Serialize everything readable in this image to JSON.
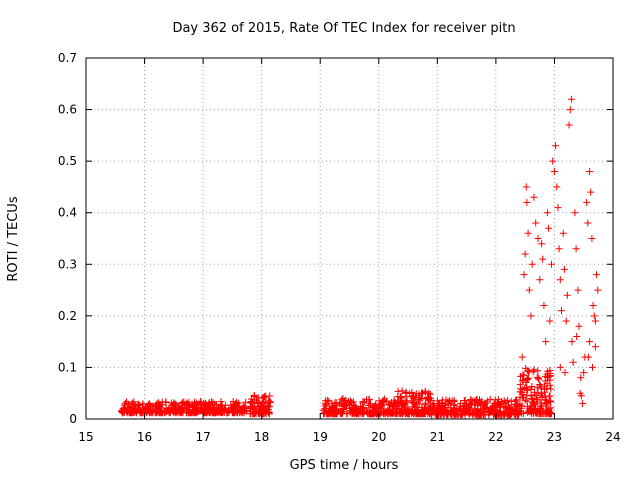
{
  "chart_data": {
    "type": "scatter",
    "title": "Day 362 of 2015, Rate Of TEC Index for receiver pitn",
    "xlabel": "GPS time / hours",
    "ylabel": "ROTI / TECUs",
    "xlim": [
      15,
      24
    ],
    "ylim": [
      0,
      0.7
    ],
    "xticks": [
      "15",
      "16",
      "17",
      "18",
      "19",
      "20",
      "21",
      "22",
      "23",
      "24"
    ],
    "yticks": [
      "0",
      "0.1",
      "0.2",
      "0.3",
      "0.4",
      "0.5",
      "0.6",
      "0.7"
    ],
    "grid": true,
    "marker": "+",
    "series": [
      {
        "name": "ROTI",
        "color": "#ff0000",
        "segments": [
          {
            "x0": 15.6,
            "x1": 17.75,
            "base": 0.012,
            "spread": 0.022,
            "count": 420
          },
          {
            "x0": 17.8,
            "x1": 18.15,
            "base": 0.01,
            "spread": 0.038,
            "count": 90
          },
          {
            "x0": 19.05,
            "x1": 20.3,
            "base": 0.01,
            "spread": 0.03,
            "count": 260
          },
          {
            "x0": 20.3,
            "x1": 20.9,
            "base": 0.01,
            "spread": 0.045,
            "count": 160
          },
          {
            "x0": 20.9,
            "x1": 22.4,
            "base": 0.008,
            "spread": 0.03,
            "count": 300
          },
          {
            "x0": 22.4,
            "x1": 22.95,
            "base": 0.01,
            "spread": 0.09,
            "count": 160
          }
        ],
        "high_points": [
          [
            22.45,
            0.12
          ],
          [
            22.48,
            0.28
          ],
          [
            22.5,
            0.32
          ],
          [
            22.52,
            0.45
          ],
          [
            22.53,
            0.42
          ],
          [
            22.55,
            0.36
          ],
          [
            22.57,
            0.25
          ],
          [
            22.6,
            0.2
          ],
          [
            22.62,
            0.3
          ],
          [
            22.65,
            0.43
          ],
          [
            22.68,
            0.38
          ],
          [
            22.72,
            0.35
          ],
          [
            22.75,
            0.27
          ],
          [
            22.78,
            0.34
          ],
          [
            22.8,
            0.31
          ],
          [
            22.82,
            0.22
          ],
          [
            22.85,
            0.15
          ],
          [
            22.88,
            0.4
          ],
          [
            22.9,
            0.37
          ],
          [
            22.92,
            0.19
          ],
          [
            22.95,
            0.3
          ],
          [
            22.97,
            0.5
          ],
          [
            23.0,
            0.48
          ],
          [
            23.02,
            0.53
          ],
          [
            23.04,
            0.45
          ],
          [
            23.06,
            0.41
          ],
          [
            23.08,
            0.33
          ],
          [
            23.1,
            0.27
          ],
          [
            23.12,
            0.21
          ],
          [
            23.15,
            0.36
          ],
          [
            23.17,
            0.29
          ],
          [
            23.2,
            0.19
          ],
          [
            23.22,
            0.24
          ],
          [
            23.25,
            0.57
          ],
          [
            23.27,
            0.6
          ],
          [
            23.29,
            0.62
          ],
          [
            23.3,
            0.15
          ],
          [
            23.32,
            0.11
          ],
          [
            23.35,
            0.4
          ],
          [
            23.37,
            0.33
          ],
          [
            23.4,
            0.25
          ],
          [
            23.42,
            0.18
          ],
          [
            23.44,
            0.05
          ],
          [
            23.46,
            0.045
          ],
          [
            23.48,
            0.03
          ],
          [
            23.5,
            0.09
          ],
          [
            23.52,
            0.12
          ],
          [
            23.55,
            0.42
          ],
          [
            23.57,
            0.38
          ],
          [
            23.6,
            0.48
          ],
          [
            23.62,
            0.44
          ],
          [
            23.64,
            0.35
          ],
          [
            23.66,
            0.22
          ],
          [
            23.68,
            0.2
          ],
          [
            23.7,
            0.14
          ],
          [
            23.72,
            0.28
          ],
          [
            23.74,
            0.25
          ],
          [
            23.6,
            0.15
          ],
          [
            23.58,
            0.12
          ],
          [
            23.7,
            0.19
          ],
          [
            23.1,
            0.1
          ],
          [
            23.18,
            0.09
          ],
          [
            23.38,
            0.16
          ],
          [
            23.45,
            0.08
          ],
          [
            23.65,
            0.1
          ]
        ]
      }
    ]
  }
}
